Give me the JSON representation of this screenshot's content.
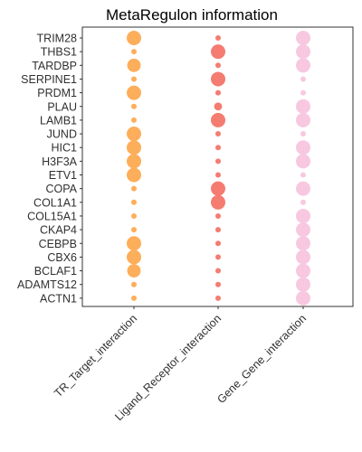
{
  "chart_data": {
    "type": "scatter",
    "title": "MetaRegulon information",
    "xlabel": "",
    "ylabel": "",
    "categories": [
      "TR_Target_interaction",
      "Ligand_Receptor_interaction",
      "Gene_Gene_interaction"
    ],
    "genes": [
      "TRIM28",
      "THBS1",
      "TARDBP",
      "SERPINE1",
      "PRDM1",
      "PLAU",
      "LAMB1",
      "JUND",
      "HIC1",
      "H3F3A",
      "ETV1",
      "COPA",
      "COL1A1",
      "COL15A1",
      "CKAP4",
      "CEBPB",
      "CBX6",
      "BCLAF1",
      "ADAMTS12",
      "ACTN1"
    ],
    "series": [
      {
        "category": "TR_Target_interaction",
        "color": "#FDAE5A",
        "values": [
          1,
          0.1,
          0.9,
          0.1,
          1,
          0.1,
          0.1,
          1,
          1,
          1,
          1,
          0.1,
          0.1,
          0.1,
          0.1,
          1,
          1,
          0.9,
          0.1,
          0.1
        ]
      },
      {
        "category": "Ligand_Receptor_interaction",
        "color": "#F47C71",
        "values": [
          0.1,
          1,
          0.1,
          1,
          0.1,
          0.35,
          1,
          0.1,
          0.1,
          0.1,
          0.1,
          1,
          1,
          0.1,
          0.1,
          0.1,
          0.1,
          0.1,
          0.1,
          0.1
        ]
      },
      {
        "category": "Gene_Gene_interaction",
        "color": "#F8C8E0",
        "values": [
          1,
          1,
          1,
          0.1,
          0.1,
          1,
          1,
          0.1,
          1,
          1,
          0.1,
          1,
          0.1,
          1,
          1,
          1,
          1,
          1,
          1,
          1
        ]
      }
    ],
    "grid": false,
    "legend": "none"
  }
}
